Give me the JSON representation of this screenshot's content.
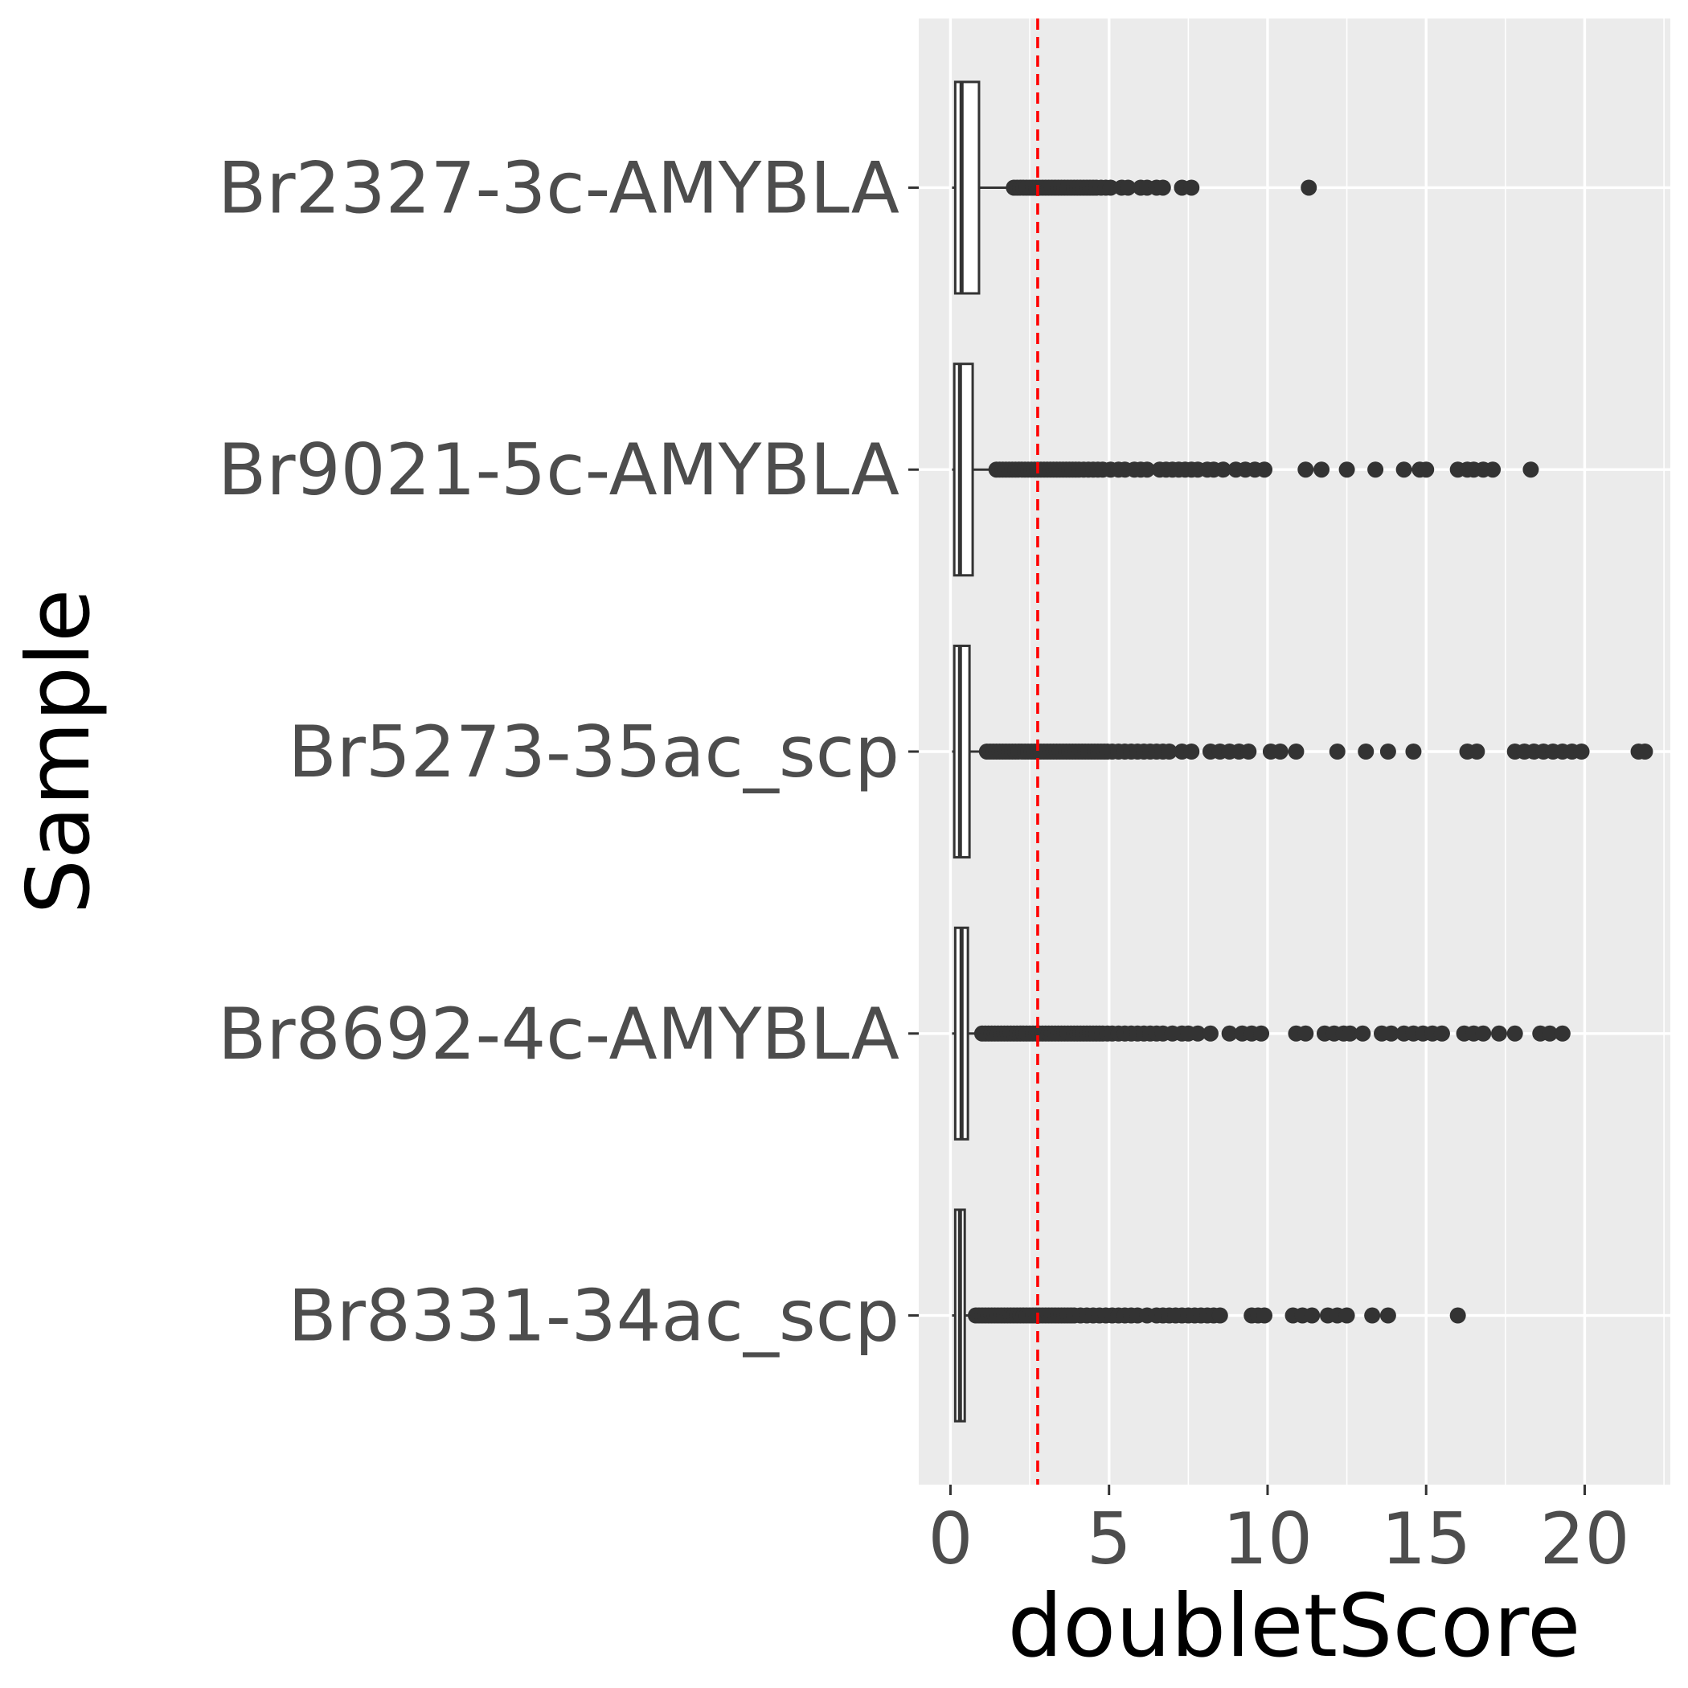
{
  "chart_data": {
    "type": "boxplot",
    "title": "",
    "xlabel": "doubletScore",
    "ylabel": "Sample",
    "xlim": [
      -1.0,
      22.7
    ],
    "x_ticks": [
      0,
      5,
      10,
      15,
      20
    ],
    "grid": true,
    "threshold": {
      "value": 2.75,
      "color": "#ff0000",
      "style": "dashed"
    },
    "colors": {
      "panel": "#ebebeb",
      "grid": "#ffffff",
      "box": "#333333",
      "outlier": "#333333",
      "tick_label": "#4d4d4d"
    },
    "categories": [
      "Br2327-3c-AMYBLA",
      "Br9021-5c-AMYBLA",
      "Br5273-35ac_scp",
      "Br8692-4c-AMYBLA",
      "Br8331-34ac_scp"
    ],
    "boxes": [
      {
        "sample": "Br2327-3c-AMYBLA",
        "min": 0.05,
        "q1": 0.15,
        "median": 0.35,
        "q3": 0.9,
        "whisker_high": 1.95,
        "outliers": [
          2.0,
          2.1,
          2.2,
          2.3,
          2.4,
          2.5,
          2.6,
          2.7,
          2.8,
          2.9,
          3.0,
          3.1,
          3.2,
          3.3,
          3.4,
          3.5,
          3.6,
          3.7,
          3.8,
          3.9,
          4.0,
          4.1,
          4.2,
          4.3,
          4.4,
          4.5,
          4.6,
          4.75,
          4.9,
          5.05,
          5.4,
          5.6,
          6.0,
          6.2,
          6.5,
          6.7,
          7.3,
          7.6,
          11.3
        ]
      },
      {
        "sample": "Br9021-5c-AMYBLA",
        "min": 0.05,
        "q1": 0.12,
        "median": 0.3,
        "q3": 0.7,
        "whisker_high": 1.4,
        "outliers": [
          1.45,
          1.55,
          1.65,
          1.75,
          1.85,
          1.95,
          2.05,
          2.15,
          2.25,
          2.35,
          2.45,
          2.55,
          2.65,
          2.75,
          2.85,
          2.95,
          3.05,
          3.15,
          3.25,
          3.35,
          3.45,
          3.55,
          3.65,
          3.75,
          3.85,
          3.95,
          4.05,
          4.2,
          4.35,
          4.5,
          4.65,
          4.8,
          5.05,
          5.3,
          5.5,
          5.8,
          6.0,
          6.2,
          6.6,
          6.8,
          7.0,
          7.2,
          7.4,
          7.6,
          7.8,
          8.1,
          8.3,
          8.6,
          9.0,
          9.3,
          9.6,
          9.9,
          11.2,
          11.7,
          12.5,
          13.4,
          14.3,
          14.8,
          15.0,
          16.0,
          16.3,
          16.5,
          16.8,
          17.1,
          18.3
        ]
      },
      {
        "sample": "Br5273-35ac_scp",
        "min": 0.05,
        "q1": 0.12,
        "median": 0.3,
        "q3": 0.6,
        "whisker_high": 1.1,
        "outliers": [
          1.15,
          1.25,
          1.35,
          1.45,
          1.55,
          1.65,
          1.75,
          1.85,
          1.95,
          2.05,
          2.15,
          2.25,
          2.35,
          2.45,
          2.55,
          2.65,
          2.75,
          2.85,
          2.95,
          3.05,
          3.15,
          3.25,
          3.35,
          3.45,
          3.55,
          3.65,
          3.75,
          3.85,
          3.95,
          4.05,
          4.15,
          4.25,
          4.35,
          4.45,
          4.55,
          4.65,
          4.75,
          4.85,
          4.95,
          5.1,
          5.3,
          5.5,
          5.7,
          5.9,
          6.1,
          6.3,
          6.5,
          6.7,
          6.9,
          7.3,
          7.6,
          8.2,
          8.5,
          8.8,
          9.1,
          9.4,
          10.1,
          10.4,
          10.9,
          12.2,
          13.1,
          13.8,
          14.6,
          16.3,
          16.6,
          17.8,
          18.1,
          18.4,
          18.7,
          19.0,
          19.3,
          19.6,
          19.9,
          21.7,
          21.9
        ]
      },
      {
        "sample": "Br8692-4c-AMYBLA",
        "min": 0.05,
        "q1": 0.15,
        "median": 0.35,
        "q3": 0.55,
        "whisker_high": 0.95,
        "outliers": [
          1.0,
          1.1,
          1.2,
          1.3,
          1.4,
          1.5,
          1.6,
          1.7,
          1.8,
          1.9,
          2.0,
          2.1,
          2.2,
          2.3,
          2.4,
          2.5,
          2.6,
          2.7,
          2.8,
          2.9,
          3.0,
          3.1,
          3.2,
          3.3,
          3.4,
          3.5,
          3.6,
          3.7,
          3.8,
          3.9,
          4.0,
          4.1,
          4.2,
          4.3,
          4.4,
          4.5,
          4.6,
          4.7,
          4.8,
          4.95,
          5.1,
          5.3,
          5.5,
          5.7,
          5.9,
          6.1,
          6.3,
          6.5,
          6.7,
          7.0,
          7.3,
          7.5,
          7.8,
          8.2,
          8.8,
          9.2,
          9.5,
          9.8,
          10.9,
          11.2,
          11.8,
          12.1,
          12.4,
          12.6,
          13.0,
          13.6,
          13.9,
          14.3,
          14.6,
          14.9,
          15.2,
          15.5,
          16.2,
          16.5,
          16.8,
          17.3,
          17.8,
          18.6,
          18.9,
          19.3
        ]
      },
      {
        "sample": "Br8331-34ac_scp",
        "min": 0.05,
        "q1": 0.15,
        "median": 0.3,
        "q3": 0.45,
        "whisker_high": 0.75,
        "outliers": [
          0.8,
          0.9,
          1.0,
          1.1,
          1.2,
          1.3,
          1.4,
          1.5,
          1.6,
          1.7,
          1.8,
          1.9,
          2.0,
          2.1,
          2.2,
          2.3,
          2.4,
          2.5,
          2.6,
          2.7,
          2.8,
          2.9,
          3.0,
          3.1,
          3.2,
          3.3,
          3.4,
          3.5,
          3.6,
          3.7,
          3.8,
          3.9,
          4.1,
          4.3,
          4.5,
          4.7,
          4.9,
          5.1,
          5.3,
          5.5,
          5.7,
          5.9,
          6.2,
          6.5,
          6.7,
          6.9,
          7.1,
          7.3,
          7.5,
          7.7,
          7.9,
          8.1,
          8.3,
          8.5,
          9.5,
          9.7,
          9.9,
          10.8,
          11.1,
          11.4,
          11.9,
          12.2,
          12.5,
          13.3,
          13.8,
          16.0
        ]
      }
    ]
  }
}
